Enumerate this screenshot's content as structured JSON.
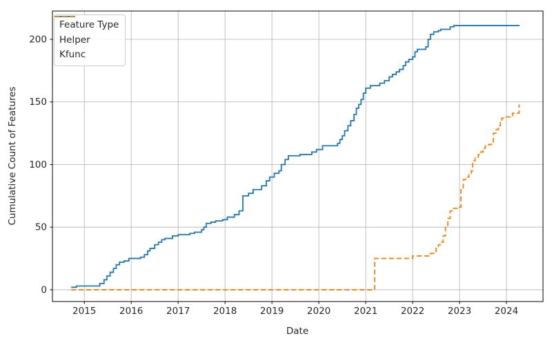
{
  "chart_data": {
    "type": "line",
    "subtype": "step-post",
    "title": "",
    "xlabel": "Date",
    "ylabel": "Cumulative Count of Features",
    "xlim": [
      2014.32,
      2024.78
    ],
    "ylim": [
      -9.4,
      222.6
    ],
    "x_ticks": [
      2015,
      2016,
      2017,
      2018,
      2019,
      2020,
      2021,
      2022,
      2023,
      2024
    ],
    "y_ticks": [
      0,
      50,
      100,
      150,
      200
    ],
    "grid": true,
    "grid_color": "#b0b0b0",
    "spine_color": "#000000",
    "legend": {
      "title": "Feature Type",
      "position": "upper left"
    },
    "series": [
      {
        "name": "Helper",
        "color": "#1f77b4",
        "style": "solid",
        "points": [
          [
            2014.72,
            2
          ],
          [
            2014.83,
            3
          ],
          [
            2015.33,
            5
          ],
          [
            2015.42,
            8
          ],
          [
            2015.48,
            11
          ],
          [
            2015.55,
            14
          ],
          [
            2015.62,
            17
          ],
          [
            2015.68,
            20
          ],
          [
            2015.75,
            22
          ],
          [
            2015.85,
            23
          ],
          [
            2015.95,
            25
          ],
          [
            2016.2,
            26
          ],
          [
            2016.28,
            28
          ],
          [
            2016.35,
            31
          ],
          [
            2016.4,
            33
          ],
          [
            2016.5,
            36
          ],
          [
            2016.58,
            38
          ],
          [
            2016.65,
            40
          ],
          [
            2016.72,
            41
          ],
          [
            2016.88,
            43
          ],
          [
            2017.0,
            44
          ],
          [
            2017.25,
            45
          ],
          [
            2017.35,
            46
          ],
          [
            2017.5,
            48
          ],
          [
            2017.55,
            50
          ],
          [
            2017.6,
            53
          ],
          [
            2017.7,
            54
          ],
          [
            2017.8,
            55
          ],
          [
            2017.95,
            56
          ],
          [
            2018.05,
            58
          ],
          [
            2018.2,
            60
          ],
          [
            2018.3,
            63
          ],
          [
            2018.38,
            75
          ],
          [
            2018.5,
            77
          ],
          [
            2018.6,
            80
          ],
          [
            2018.78,
            83
          ],
          [
            2018.88,
            87
          ],
          [
            2018.95,
            90
          ],
          [
            2019.05,
            93
          ],
          [
            2019.15,
            95
          ],
          [
            2019.2,
            100
          ],
          [
            2019.28,
            104
          ],
          [
            2019.35,
            107
          ],
          [
            2019.6,
            108
          ],
          [
            2019.85,
            110
          ],
          [
            2019.95,
            112
          ],
          [
            2020.08,
            115
          ],
          [
            2020.4,
            117
          ],
          [
            2020.45,
            120
          ],
          [
            2020.5,
            123
          ],
          [
            2020.55,
            127
          ],
          [
            2020.62,
            131
          ],
          [
            2020.68,
            135
          ],
          [
            2020.75,
            140
          ],
          [
            2020.8,
            145
          ],
          [
            2020.85,
            148
          ],
          [
            2020.9,
            152
          ],
          [
            2020.95,
            157
          ],
          [
            2021.0,
            161
          ],
          [
            2021.1,
            163
          ],
          [
            2021.3,
            165
          ],
          [
            2021.4,
            167
          ],
          [
            2021.5,
            170
          ],
          [
            2021.57,
            172
          ],
          [
            2021.65,
            174
          ],
          [
            2021.72,
            176
          ],
          [
            2021.8,
            179
          ],
          [
            2021.85,
            182
          ],
          [
            2021.92,
            184
          ],
          [
            2022.0,
            186
          ],
          [
            2022.05,
            190
          ],
          [
            2022.1,
            192
          ],
          [
            2022.28,
            194
          ],
          [
            2022.33,
            200
          ],
          [
            2022.38,
            204
          ],
          [
            2022.45,
            206
          ],
          [
            2022.55,
            207
          ],
          [
            2022.6,
            208
          ],
          [
            2022.8,
            210
          ],
          [
            2022.88,
            211
          ],
          [
            2024.28,
            211
          ]
        ]
      },
      {
        "name": "Kfunc",
        "color": "#ff7f0e",
        "style": "dashed",
        "points": [
          [
            2014.72,
            0
          ],
          [
            2021.17,
            0
          ],
          [
            2021.19,
            25
          ],
          [
            2021.95,
            25
          ],
          [
            2022.0,
            27
          ],
          [
            2022.38,
            29
          ],
          [
            2022.5,
            33
          ],
          [
            2022.55,
            36
          ],
          [
            2022.6,
            38
          ],
          [
            2022.65,
            43
          ],
          [
            2022.7,
            50
          ],
          [
            2022.75,
            57
          ],
          [
            2022.8,
            63
          ],
          [
            2022.85,
            65
          ],
          [
            2023.0,
            66
          ],
          [
            2023.03,
            80
          ],
          [
            2023.08,
            88
          ],
          [
            2023.13,
            90
          ],
          [
            2023.2,
            92
          ],
          [
            2023.25,
            95
          ],
          [
            2023.28,
            103
          ],
          [
            2023.33,
            106
          ],
          [
            2023.4,
            108
          ],
          [
            2023.45,
            110
          ],
          [
            2023.5,
            113
          ],
          [
            2023.55,
            115
          ],
          [
            2023.62,
            116
          ],
          [
            2023.68,
            118
          ],
          [
            2023.72,
            125
          ],
          [
            2023.78,
            128
          ],
          [
            2023.83,
            131
          ],
          [
            2023.87,
            134
          ],
          [
            2023.9,
            137
          ],
          [
            2023.95,
            138
          ],
          [
            2024.08,
            139
          ],
          [
            2024.13,
            141
          ],
          [
            2024.25,
            141
          ],
          [
            2024.27,
            148
          ]
        ]
      }
    ]
  }
}
